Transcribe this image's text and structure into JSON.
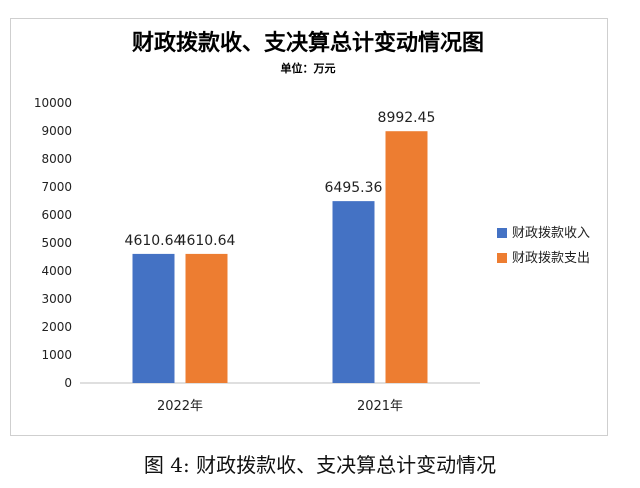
{
  "chart_data": {
    "type": "bar",
    "title": "财政拨款收、支决算总计变动情况图",
    "subtitle": "单位：万元",
    "categories": [
      "2022年",
      "2021年"
    ],
    "series": [
      {
        "name": "财政拨款收入",
        "values": [
          4610.64,
          6495.36
        ],
        "color": "#4472C4"
      },
      {
        "name": "财政拨款支出",
        "values": [
          4610.64,
          8992.45
        ],
        "color": "#ED7D31"
      }
    ],
    "y_ticks": [
      0,
      1000,
      2000,
      3000,
      4000,
      5000,
      6000,
      7000,
      8000,
      9000,
      10000
    ],
    "ylim": [
      0,
      10000
    ],
    "grid": false,
    "legend_position": "right"
  },
  "caption": "图 4:  财政拨款收、支决算总计变动情况"
}
